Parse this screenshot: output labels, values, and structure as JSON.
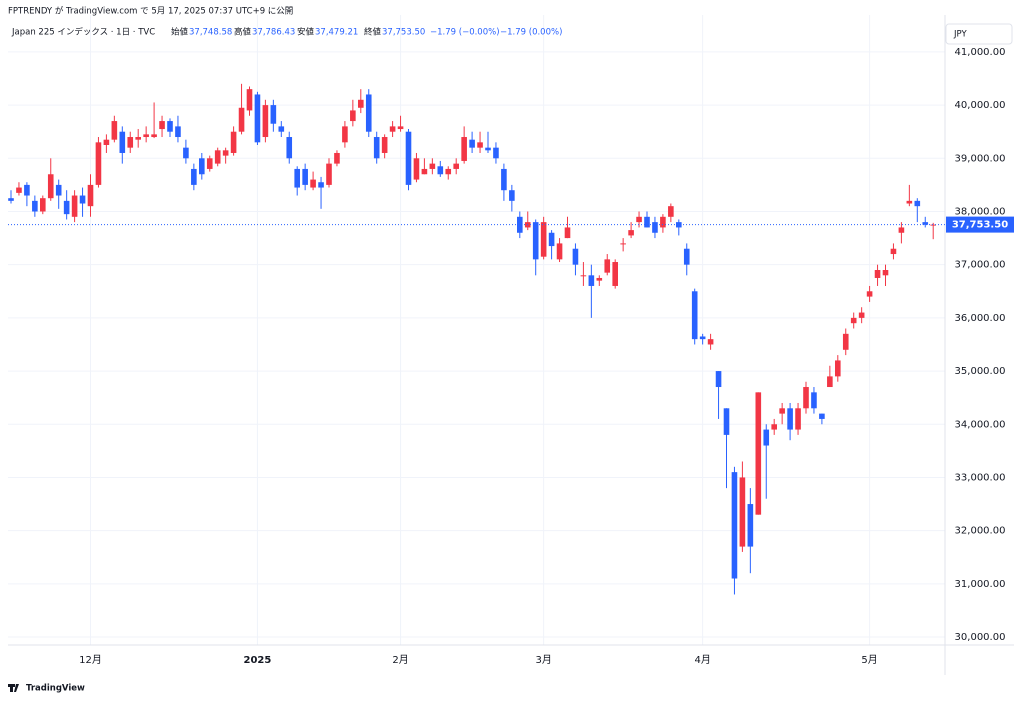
{
  "header": "FPTRENDY が TradingView.com で 5月 17, 2025 07:37 UTC+9 に公開",
  "legend": {
    "symbol": "Japan 225 インデックス · 1日 · TVC",
    "open_label": "始値",
    "open": "37,748.58",
    "high_label": "高値",
    "high": "37,786.43",
    "low_label": "安値",
    "low": "37,479.21",
    "close_label": "終値",
    "close": "37,753.50",
    "change": "−1.79 (−0.00%)",
    "change2": "−1.79 (0.00%)"
  },
  "currency": "JPY",
  "brand": "TradingView",
  "chart_data": {
    "type": "candlestick",
    "categories": [
      null,
      null,
      null,
      null,
      null,
      null,
      null,
      null,
      null,
      null,
      "12月",
      null,
      null,
      null,
      null,
      null,
      null,
      null,
      null,
      null,
      null,
      null,
      null,
      null,
      null,
      null,
      null,
      null,
      null,
      null,
      null,
      "2025",
      null,
      null,
      null,
      null,
      null,
      null,
      null,
      null,
      null,
      null,
      null,
      null,
      null,
      null,
      null,
      null,
      null,
      "2月",
      null,
      null,
      null,
      null,
      null,
      null,
      null,
      null,
      null,
      null,
      null,
      null,
      null,
      null,
      null,
      null,
      null,
      "3月",
      null,
      null,
      null,
      null,
      null,
      null,
      null,
      null,
      null,
      null,
      null,
      null,
      null,
      null,
      null,
      null,
      null,
      null,
      null,
      "4月",
      null,
      null,
      null,
      null,
      null,
      null,
      null,
      null,
      null,
      null,
      null,
      null,
      null,
      null,
      null,
      null,
      null,
      null,
      null,
      null,
      "5月",
      null,
      null,
      null,
      null,
      null,
      null,
      null,
      null
    ],
    "open": [
      38250,
      38350,
      38500,
      38200,
      38000,
      38250,
      38500,
      38200,
      37900,
      38300,
      38100,
      38500,
      39250,
      39350,
      39500,
      39200,
      39350,
      39400,
      39400,
      39550,
      39700,
      39600,
      39200,
      38800,
      39000,
      38800,
      38900,
      39050,
      39100,
      39500,
      39900,
      40200,
      39400,
      40000,
      39600,
      39400,
      38800,
      38800,
      38450,
      38550,
      38500,
      38900,
      39300,
      39700,
      39950,
      40200,
      39400,
      39100,
      39500,
      39550,
      39500,
      38600,
      38700,
      38800,
      38850,
      38700,
      38800,
      38950,
      39350,
      39200,
      39200,
      39200,
      38800,
      38400,
      37900,
      37700,
      37800,
      37150,
      37600,
      37100,
      37500,
      37300,
      36800,
      36800,
      36700,
      36850,
      36600,
      37400,
      37550,
      37800,
      37900,
      37800,
      37700,
      37900,
      37800,
      37300,
      36500,
      35650,
      35500,
      35000,
      34300,
      33100,
      31700,
      32500,
      32300,
      33900,
      33900,
      34200,
      34300,
      33900,
      34300,
      34600,
      34200,
      34700,
      34900,
      35400,
      35900,
      36000,
      36400,
      36750,
      36800,
      37200,
      37600,
      38150,
      38200,
      37800,
      37748.58
    ],
    "high": [
      38400,
      38550,
      38550,
      38300,
      38300,
      39000,
      38600,
      38400,
      38400,
      38450,
      38700,
      39400,
      39450,
      39800,
      39600,
      39500,
      39550,
      39600,
      40050,
      39800,
      39750,
      39800,
      39350,
      38900,
      39100,
      39050,
      39200,
      39200,
      39600,
      40400,
      40350,
      40250,
      40100,
      40100,
      39700,
      39500,
      38850,
      38900,
      38750,
      38650,
      39000,
      39150,
      39700,
      40100,
      40300,
      40300,
      39500,
      39450,
      39700,
      39800,
      39550,
      39100,
      39000,
      39000,
      38950,
      38850,
      39000,
      39600,
      39500,
      39500,
      39500,
      39300,
      38900,
      38500,
      38000,
      38000,
      37850,
      37900,
      37650,
      37500,
      37900,
      37400,
      37050,
      37000,
      36800,
      37200,
      37100,
      37500,
      37800,
      38000,
      38000,
      37900,
      37950,
      38150,
      37850,
      37400,
      36550,
      35700,
      35700,
      35000,
      34300,
      33200,
      33300,
      32800,
      34600,
      34000,
      34100,
      34400,
      34400,
      34400,
      34800,
      34700,
      34200,
      35100,
      35300,
      35800,
      36100,
      36200,
      36600,
      37000,
      37000,
      37400,
      37800,
      38500,
      38250,
      37900,
      37786.43
    ],
    "low": [
      38150,
      38300,
      38100,
      37900,
      37950,
      38200,
      38050,
      37850,
      37800,
      37900,
      37900,
      38450,
      39100,
      39300,
      38900,
      39100,
      39200,
      39300,
      39380,
      39400,
      39400,
      39300,
      38900,
      38400,
      38600,
      38750,
      38850,
      38900,
      39050,
      39450,
      39800,
      39250,
      39300,
      39500,
      39400,
      38900,
      38300,
      38400,
      38400,
      38050,
      38450,
      38850,
      39200,
      39600,
      39850,
      39400,
      38900,
      39000,
      39400,
      39500,
      38400,
      38550,
      38700,
      38700,
      38650,
      38600,
      38700,
      38900,
      39100,
      39100,
      39100,
      38900,
      38200,
      38000,
      37500,
      37650,
      36800,
      37100,
      37100,
      37050,
      37500,
      36800,
      36600,
      36000,
      36600,
      36800,
      36550,
      37250,
      37500,
      37700,
      37700,
      37500,
      37600,
      37800,
      37550,
      36800,
      35500,
      35500,
      35400,
      34100,
      32800,
      30800,
      31600,
      31200,
      32300,
      32600,
      33800,
      34000,
      33700,
      33800,
      34200,
      34200,
      34000,
      34700,
      34800,
      35300,
      35800,
      35900,
      36300,
      36600,
      36600,
      37100,
      37400,
      38100,
      37800,
      37700,
      37479.21
    ],
    "close": [
      38200,
      38450,
      38300,
      38000,
      38250,
      38700,
      38300,
      37950,
      38300,
      38150,
      38500,
      39300,
      39350,
      39700,
      39100,
      39400,
      39400,
      39450,
      39450,
      39700,
      39500,
      39400,
      39000,
      38500,
      38700,
      39000,
      39150,
      39150,
      39500,
      39950,
      40300,
      39300,
      40000,
      39650,
      39500,
      39000,
      38450,
      38500,
      38600,
      38450,
      38900,
      39100,
      39600,
      39900,
      40100,
      39500,
      39000,
      39400,
      39600,
      39600,
      38500,
      39000,
      38800,
      38900,
      38700,
      38800,
      38900,
      39400,
      39200,
      39300,
      39150,
      39000,
      38400,
      38200,
      37600,
      37800,
      37100,
      37800,
      37350,
      37400,
      37700,
      37000,
      36800,
      36600,
      36750,
      37100,
      37050,
      37400,
      37650,
      37900,
      37700,
      37600,
      37900,
      38100,
      37700,
      37000,
      35600,
      35600,
      35600,
      34700,
      33800,
      31100,
      33000,
      31700,
      34600,
      33600,
      34000,
      34300,
      33900,
      34300,
      34700,
      34300,
      34100,
      34900,
      35200,
      35700,
      36000,
      36100,
      36500,
      36900,
      36900,
      37300,
      37700,
      38200,
      38100,
      37750,
      37753.5
    ],
    "last_value_label": "37,753.50",
    "up_color": "#f23645",
    "down_color": "#2962ff",
    "ylim": [
      29850,
      41600
    ],
    "yticks": [
      {
        "value": 30000,
        "label": "30,000.00"
      },
      {
        "value": 31000,
        "label": "31,000.00"
      },
      {
        "value": 32000,
        "label": "32,000.00"
      },
      {
        "value": 33000,
        "label": "33,000.00"
      },
      {
        "value": 34000,
        "label": "34,000.00"
      },
      {
        "value": 35000,
        "label": "35,000.00"
      },
      {
        "value": 36000,
        "label": "36,000.00"
      },
      {
        "value": 37000,
        "label": "37,000.00"
      },
      {
        "value": 38000,
        "label": "38,000.00"
      },
      {
        "value": 39000,
        "label": "39,000.00"
      },
      {
        "value": 40000,
        "label": "40,000.00"
      },
      {
        "value": 41000,
        "label": "41,000.00"
      }
    ],
    "grid": true
  }
}
